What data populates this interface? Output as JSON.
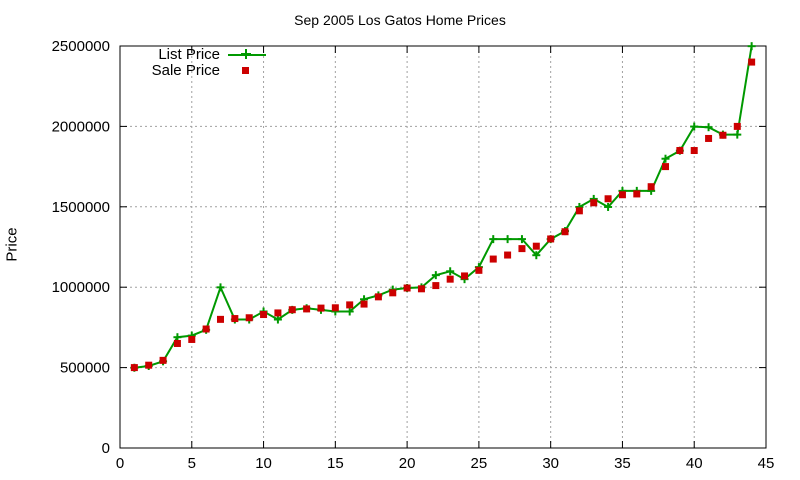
{
  "chart_data": {
    "type": "line",
    "title": "Sep 2005 Los Gatos Home Prices",
    "xlabel": "",
    "ylabel": "Price",
    "xlim": [
      0,
      45
    ],
    "ylim": [
      0,
      2500000
    ],
    "xticks": [
      0,
      5,
      10,
      15,
      20,
      25,
      30,
      35,
      40,
      45
    ],
    "yticks": [
      0,
      500000,
      1000000,
      1500000,
      2000000,
      2500000
    ],
    "grid": true,
    "legend_position": "top-left",
    "x": [
      1,
      2,
      3,
      4,
      5,
      6,
      7,
      8,
      9,
      10,
      11,
      12,
      13,
      14,
      15,
      16,
      17,
      18,
      19,
      20,
      21,
      22,
      23,
      24,
      25,
      26,
      27,
      28,
      29,
      30,
      31,
      32,
      33,
      34,
      35,
      36,
      37,
      38,
      39,
      40,
      41,
      42,
      43,
      44
    ],
    "series": [
      {
        "name": "List Price",
        "style": "line-plus",
        "color": "#009900",
        "values": [
          499000,
          510000,
          539000,
          689000,
          699000,
          735000,
          999000,
          799000,
          799000,
          849000,
          799000,
          859000,
          869000,
          859000,
          849000,
          849000,
          925000,
          949000,
          985000,
          995000,
          999000,
          1075000,
          1099000,
          1050000,
          1125000,
          1299000,
          1299000,
          1299000,
          1199000,
          1299000,
          1349000,
          1499000,
          1549000,
          1499000,
          1599000,
          1599000,
          1599000,
          1799000,
          1849000,
          1999000,
          1995000,
          1949000,
          1949000,
          2499000
        ]
      },
      {
        "name": "Sale Price",
        "style": "square",
        "color": "#cc0000",
        "values": [
          500000,
          515000,
          545000,
          650000,
          675000,
          740000,
          800000,
          805000,
          810000,
          830000,
          840000,
          860000,
          865000,
          870000,
          872000,
          890000,
          895000,
          940000,
          965000,
          995000,
          990000,
          1010000,
          1050000,
          1070000,
          1105000,
          1175000,
          1200000,
          1240000,
          1255000,
          1300000,
          1345000,
          1475000,
          1525000,
          1550000,
          1575000,
          1580000,
          1625000,
          1750000,
          1850000,
          1850000,
          1925000,
          1945000,
          2000000,
          2400000
        ]
      }
    ]
  }
}
